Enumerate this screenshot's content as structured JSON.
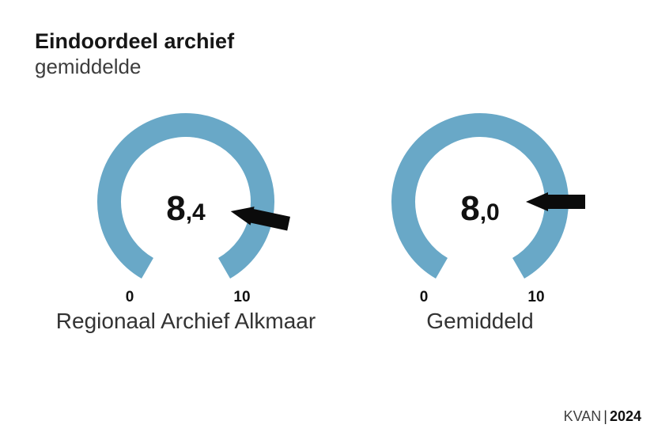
{
  "header": {
    "title": "Eindoordeel archief",
    "subtitle": "gemiddelde"
  },
  "chart_data": {
    "type": "gauge",
    "min": 0,
    "max": 10,
    "start_angle": 210,
    "end_angle": 150,
    "sweep_degrees": 300,
    "arc_color": "#69a8c7",
    "needle_color": "#0b0b0b",
    "tick_min_label": "0",
    "tick_max_label": "10",
    "gauges": [
      {
        "label": "Regionaal Archief Alkmaar",
        "value": 8.4,
        "value_display": "8,4",
        "value_int": "8",
        "value_dec": ",4"
      },
      {
        "label": "Gemiddeld",
        "value": 8.0,
        "value_display": "8,0",
        "value_int": "8",
        "value_dec": ",0"
      }
    ]
  },
  "footer": {
    "source": "KVAN",
    "divider": "|",
    "year": "2024"
  }
}
